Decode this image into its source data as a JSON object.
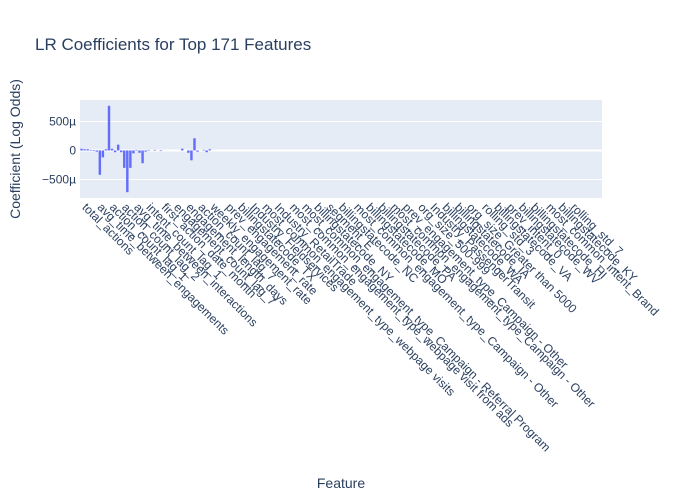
{
  "chart_data": {
    "type": "bar",
    "title": "LR Coefficients for Top 171 Features",
    "xlabel": "Feature",
    "ylabel": "Coefficient (Log Odds)",
    "ylim": [
      -0.00082,
      0.00087
    ],
    "yticks": [
      {
        "value": 0.0005,
        "label": "500µ"
      },
      {
        "value": 0,
        "label": "0"
      },
      {
        "value": -0.0005,
        "label": "−500µ"
      }
    ],
    "grid": true,
    "colors": {
      "bar": "#636efa",
      "plot_bg": "#e5ecf6",
      "grid": "#ffffff",
      "text": "#2a3f5f"
    },
    "n_features": 171,
    "labeled_features": [
      {
        "index": 0,
        "name": "total_actions"
      },
      {
        "index": 5,
        "name": "avg_time_between_engagements"
      },
      {
        "index": 9,
        "name": "action_count_lag_1"
      },
      {
        "index": 13,
        "name": "action_count_lag_2"
      },
      {
        "index": 17,
        "name": "avg_time_between_interactions"
      },
      {
        "index": 21,
        "name": "intent_count_lag_1"
      },
      {
        "index": 26,
        "name": "first_action_date_month"
      },
      {
        "index": 30,
        "name": "engagement_count_lag_7"
      },
      {
        "index": 34,
        "name": "engagement_length_days"
      },
      {
        "index": 38,
        "name": "action_count_lag_7"
      },
      {
        "index": 42,
        "name": "weekly_engagement_rate"
      },
      {
        "index": 47,
        "name": "prev_engagement_rate"
      },
      {
        "index": 51,
        "name": "billingstatecode_TX"
      },
      {
        "index": 55,
        "name": "Industry_Fieldservices"
      },
      {
        "index": 59,
        "name": "most_common_engagement_type_webpage visits"
      },
      {
        "index": 63,
        "name": "Industry_RetailTrade"
      },
      {
        "index": 68,
        "name": "most_common_engagement_type_webpage visit from ads"
      },
      {
        "index": 72,
        "name": "most_common_engagement_type_Campaign - Referral Program"
      },
      {
        "index": 76,
        "name": "billingstatecode_NY"
      },
      {
        "index": 80,
        "name": "segment_E"
      },
      {
        "index": 84,
        "name": "billingstatecode_NC"
      },
      {
        "index": 89,
        "name": "most_common_engagement_type_Campaign - Other"
      },
      {
        "index": 93,
        "name": "billingstatecode_MO"
      },
      {
        "index": 97,
        "name": "billingstatecode_PA"
      },
      {
        "index": 101,
        "name": "most_common_engagement_type_Campaign - Other"
      },
      {
        "index": 105,
        "name": "prev_engagement_type_Campaign - Other"
      },
      {
        "index": 110,
        "name": "org_size_500-999"
      },
      {
        "index": 114,
        "name": "Industry_PassengerTransit"
      },
      {
        "index": 118,
        "name": "billingstatecode_WA"
      },
      {
        "index": 122,
        "name": "billingstatecode_IA"
      },
      {
        "index": 126,
        "name": "org_size_Greater than 5000"
      },
      {
        "index": 131,
        "name": "rolling_std_3"
      },
      {
        "index": 135,
        "name": "billingstatecode_VA"
      },
      {
        "index": 139,
        "name": "prev_intent_0"
      },
      {
        "index": 143,
        "name": "billingstatecode_WV"
      },
      {
        "index": 147,
        "name": "billingstatecode_HI"
      },
      {
        "index": 152,
        "name": "most_common_intent_Brand"
      },
      {
        "index": 156,
        "name": "billingstatecode_KY"
      },
      {
        "index": 160,
        "name": "rolling_std_7"
      }
    ],
    "bars": [
      {
        "index": 0,
        "value": 3e-05
      },
      {
        "index": 1,
        "value": 2e-05
      },
      {
        "index": 2,
        "value": 2e-05
      },
      {
        "index": 3,
        "value": 1e-05
      },
      {
        "index": 4,
        "value": -1e-05
      },
      {
        "index": 5,
        "value": -2e-05
      },
      {
        "index": 6,
        "value": -0.00042
      },
      {
        "index": 7,
        "value": -0.00012
      },
      {
        "index": 8,
        "value": 2e-05
      },
      {
        "index": 9,
        "value": 0.00077
      },
      {
        "index": 10,
        "value": 3e-05
      },
      {
        "index": 11,
        "value": -3e-05
      },
      {
        "index": 12,
        "value": 0.0001
      },
      {
        "index": 13,
        "value": -3e-05
      },
      {
        "index": 14,
        "value": -0.0003
      },
      {
        "index": 15,
        "value": -0.00072
      },
      {
        "index": 16,
        "value": -0.0003
      },
      {
        "index": 17,
        "value": -5e-05
      },
      {
        "index": 18,
        "value": 1e-05
      },
      {
        "index": 19,
        "value": -4e-05
      },
      {
        "index": 20,
        "value": -0.00022
      },
      {
        "index": 21,
        "value": -2e-05
      },
      {
        "index": 22,
        "value": 1e-05
      },
      {
        "index": 24,
        "value": 1e-05
      },
      {
        "index": 26,
        "value": -1e-05
      },
      {
        "index": 33,
        "value": 3e-05
      },
      {
        "index": 35,
        "value": -4e-05
      },
      {
        "index": 36,
        "value": -0.00017
      },
      {
        "index": 37,
        "value": 0.00021
      },
      {
        "index": 38,
        "value": -2e-05
      },
      {
        "index": 40,
        "value": 1e-05
      },
      {
        "index": 41,
        "value": -3e-05
      },
      {
        "index": 42,
        "value": 2e-05
      }
    ]
  }
}
